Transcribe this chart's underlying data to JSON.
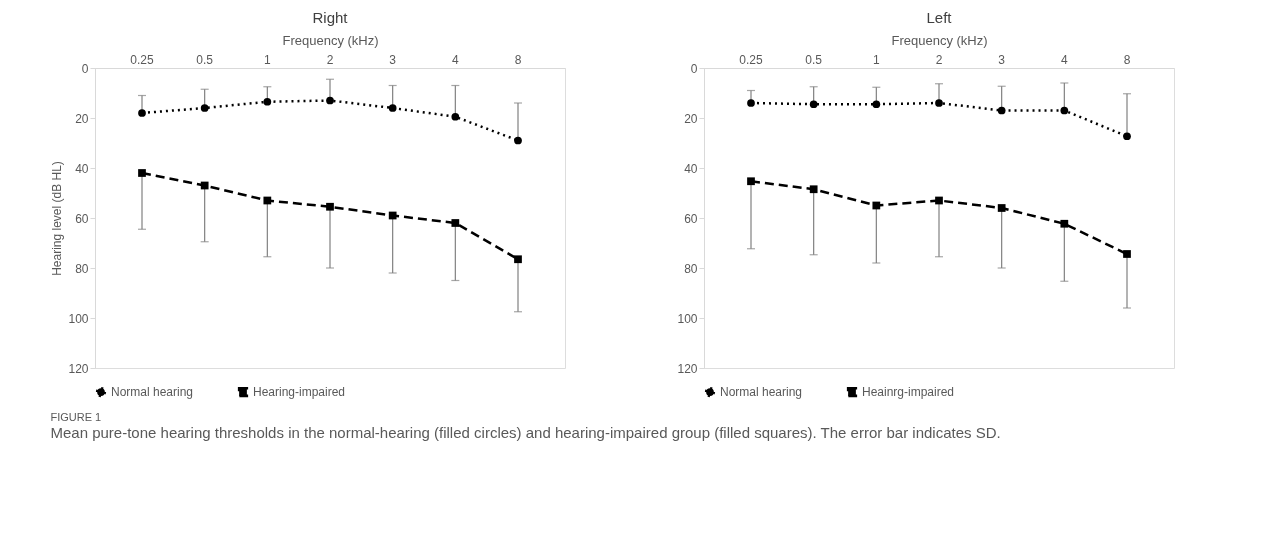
{
  "chart_data": [
    {
      "type": "line",
      "title": "Right",
      "xlabel": "Frequency (kHz)",
      "ylabel": "Hearing level (dB HL)",
      "categories": [
        "0.25",
        "0.5",
        "1",
        "2",
        "3",
        "4",
        "8"
      ],
      "ylim": [
        120,
        0
      ],
      "yticks": [
        0,
        20,
        40,
        60,
        80,
        100,
        120
      ],
      "grid": false,
      "legend": "bottom",
      "series": [
        {
          "name": "Normal hearing",
          "color": "#000000",
          "line_style": "dotted",
          "marker": "circle",
          "values": [
            18,
            16,
            13.5,
            13,
            16,
            19.5,
            29
          ],
          "errors": [
            [
              11,
              18
            ],
            [
              8.5,
              16
            ],
            [
              7.5,
              13.5
            ],
            [
              4.5,
              13
            ],
            [
              7,
              16
            ],
            [
              7,
              19.5
            ],
            [
              14,
              29
            ]
          ]
        },
        {
          "name": "Hearing-impaired",
          "color": "#000000",
          "line_style": "dashed",
          "marker": "square",
          "values": [
            42,
            47,
            53,
            55.5,
            59,
            62,
            76.5
          ],
          "errors": [
            [
              42,
              64.5
            ],
            [
              47,
              69.5
            ],
            [
              53,
              75.5
            ],
            [
              55.5,
              80
            ],
            [
              59,
              82
            ],
            [
              62,
              85
            ],
            [
              76.5,
              97.5
            ]
          ]
        }
      ]
    },
    {
      "type": "line",
      "title": "Left",
      "xlabel": "Frequency (kHz)",
      "categories": [
        "0.25",
        "0.5",
        "1",
        "2",
        "3",
        "4",
        "8"
      ],
      "ylim": [
        120,
        0
      ],
      "yticks": [
        0,
        20,
        40,
        60,
        80,
        100,
        120
      ],
      "grid": false,
      "legend": "bottom",
      "annotations": [
        "FIGURE 1",
        "Mean pure-tone hearing thresholds in the normal-hearing (filled circles) and hearing-impaired group (filled squares). The error bar indicates SD."
      ],
      "series": [
        {
          "name": "Normal hearing",
          "color": "#000000",
          "line_style": "dotted",
          "marker": "circle",
          "values": [
            14,
            14.5,
            14.5,
            14,
            17,
            17,
            27.3
          ],
          "errors": [
            [
              9,
              14
            ],
            [
              7.5,
              14.5
            ],
            [
              7.7,
              14.5
            ],
            [
              6.3,
              14
            ],
            [
              7.3,
              17
            ],
            [
              6,
              17
            ],
            [
              10.3,
              27.3
            ]
          ]
        },
        {
          "name": "Heainrg-impaired",
          "color": "#000000",
          "line_style": "dashed",
          "marker": "square",
          "values": [
            45.3,
            48.5,
            55,
            53,
            56,
            62.3,
            74.4
          ],
          "errors": [
            [
              45.3,
              72.3
            ],
            [
              48.5,
              74.7
            ],
            [
              55,
              78
            ],
            [
              53,
              75.5
            ],
            [
              56,
              80
            ],
            [
              62.3,
              85.3
            ],
            [
              74.4,
              96
            ]
          ]
        }
      ]
    }
  ]
}
